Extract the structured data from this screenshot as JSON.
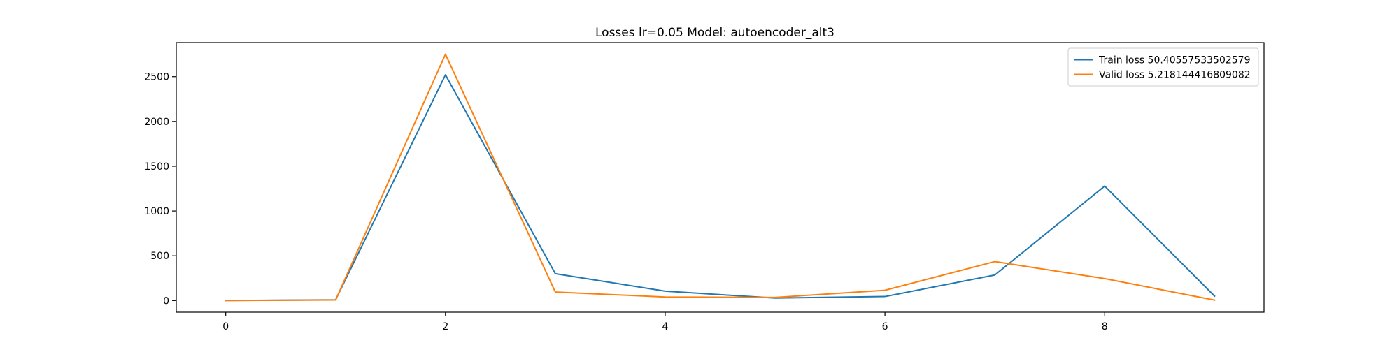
{
  "chart_data": {
    "type": "line",
    "title": "Losses lr=0.05 Model: autoencoder_alt3",
    "xlabel": "",
    "ylabel": "",
    "x": [
      0,
      1,
      2,
      3,
      4,
      5,
      6,
      7,
      8,
      9
    ],
    "xlim": [
      -0.45,
      9.45
    ],
    "ylim": [
      -130,
      2880
    ],
    "xticks": [
      0,
      2,
      4,
      6,
      8
    ],
    "yticks": [
      0,
      500,
      1000,
      1500,
      2000,
      2500
    ],
    "grid": false,
    "legend_position": "top-right",
    "series": [
      {
        "name": "Train loss 50.40557533502579",
        "color": "#1f77b4",
        "values": [
          1,
          8,
          2520,
          300,
          105,
          28,
          45,
          285,
          1278,
          50
        ]
      },
      {
        "name": "Valid loss 5.218144416809082",
        "color": "#ff7f0e",
        "values": [
          1,
          6,
          2750,
          95,
          40,
          35,
          115,
          435,
          245,
          5
        ]
      }
    ]
  }
}
